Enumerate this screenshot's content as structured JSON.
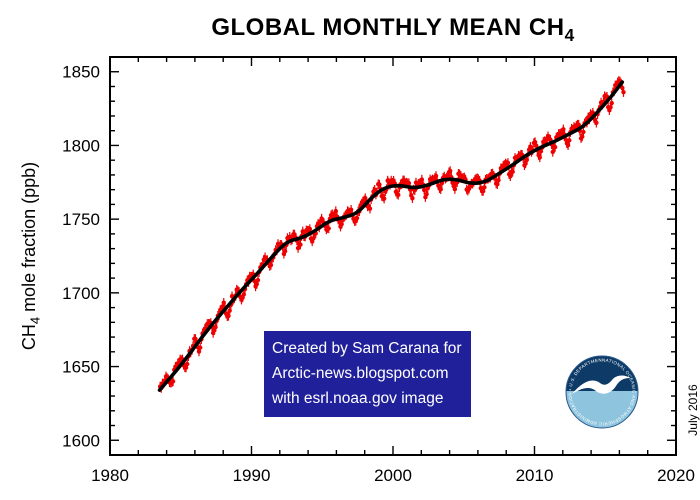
{
  "title": {
    "prefix": "GLOBAL MONTHLY MEAN CH",
    "sub": "4"
  },
  "y_axis": {
    "label_prefix": "CH",
    "label_sub": "4",
    "label_suffix": " mole fraction (ppb)",
    "min": 1590,
    "max": 1860,
    "major_ticks": [
      1600,
      1650,
      1700,
      1750,
      1800,
      1850
    ],
    "minor_step": 10
  },
  "x_axis": {
    "min": 1980,
    "max": 2020,
    "major_ticks": [
      1980,
      1990,
      2000,
      2010,
      2020
    ],
    "minor_step": 2
  },
  "annotation_box": {
    "bg_color": "#20209b",
    "text_color": "#ffffff",
    "lines": [
      "Created by Sam Carana for",
      "Arctic-news.blogspot.com",
      "with esrl.noaa.gov image"
    ]
  },
  "date_stamp": "July 2016",
  "noaa_logo": {
    "ring_text": "NATIONAL OCEANIC AND ATMOSPHERIC ADMINISTRATION • U.S. DEPARTMENT OF COMMERCE",
    "sky_color": "#0d3a66",
    "sea_color": "#8ec4de",
    "gull_color": "#ffffff",
    "ring_stroke": "#2a5a8c"
  },
  "chart_data": {
    "type": "scatter",
    "title": "GLOBAL MONTHLY MEAN CH4",
    "xlabel": "",
    "ylabel": "CH4 mole fraction (ppb)",
    "xlim": [
      1980,
      2020
    ],
    "ylim": [
      1590,
      1860
    ],
    "grid": false,
    "point_color": "#ee0000",
    "trend_color": "#000000",
    "trend": {
      "x": [
        1983.5,
        1984.5,
        1985.5,
        1986.5,
        1987.5,
        1988.5,
        1989.5,
        1990.5,
        1991.5,
        1992.5,
        1993.5,
        1994.5,
        1995.5,
        1996.5,
        1997.5,
        1998.5,
        1999.5,
        2000.5,
        2001.5,
        2002.5,
        2003.5,
        2004.5,
        2005.5,
        2006.5,
        2007.5,
        2008.5,
        2009.5,
        2010.5,
        2011.5,
        2012.5,
        2013.5,
        2014.5,
        2015.5,
        2016.2
      ],
      "y": [
        1634,
        1645,
        1657,
        1670,
        1682,
        1693,
        1704,
        1714,
        1725,
        1735,
        1737,
        1742,
        1749,
        1751,
        1754,
        1765,
        1772,
        1773,
        1771,
        1773,
        1777,
        1777,
        1774,
        1775,
        1781,
        1787,
        1794,
        1799,
        1803,
        1808,
        1813,
        1823,
        1834,
        1843
      ]
    },
    "monthly_points": {
      "start": 1983.54,
      "end": 2016.3,
      "per_year": 12,
      "seasonal_amplitude_ppb": 4.2,
      "noise_amplitude_ppb": 2.2,
      "error_bar_halfwidth_ppb": 3.2
    }
  }
}
